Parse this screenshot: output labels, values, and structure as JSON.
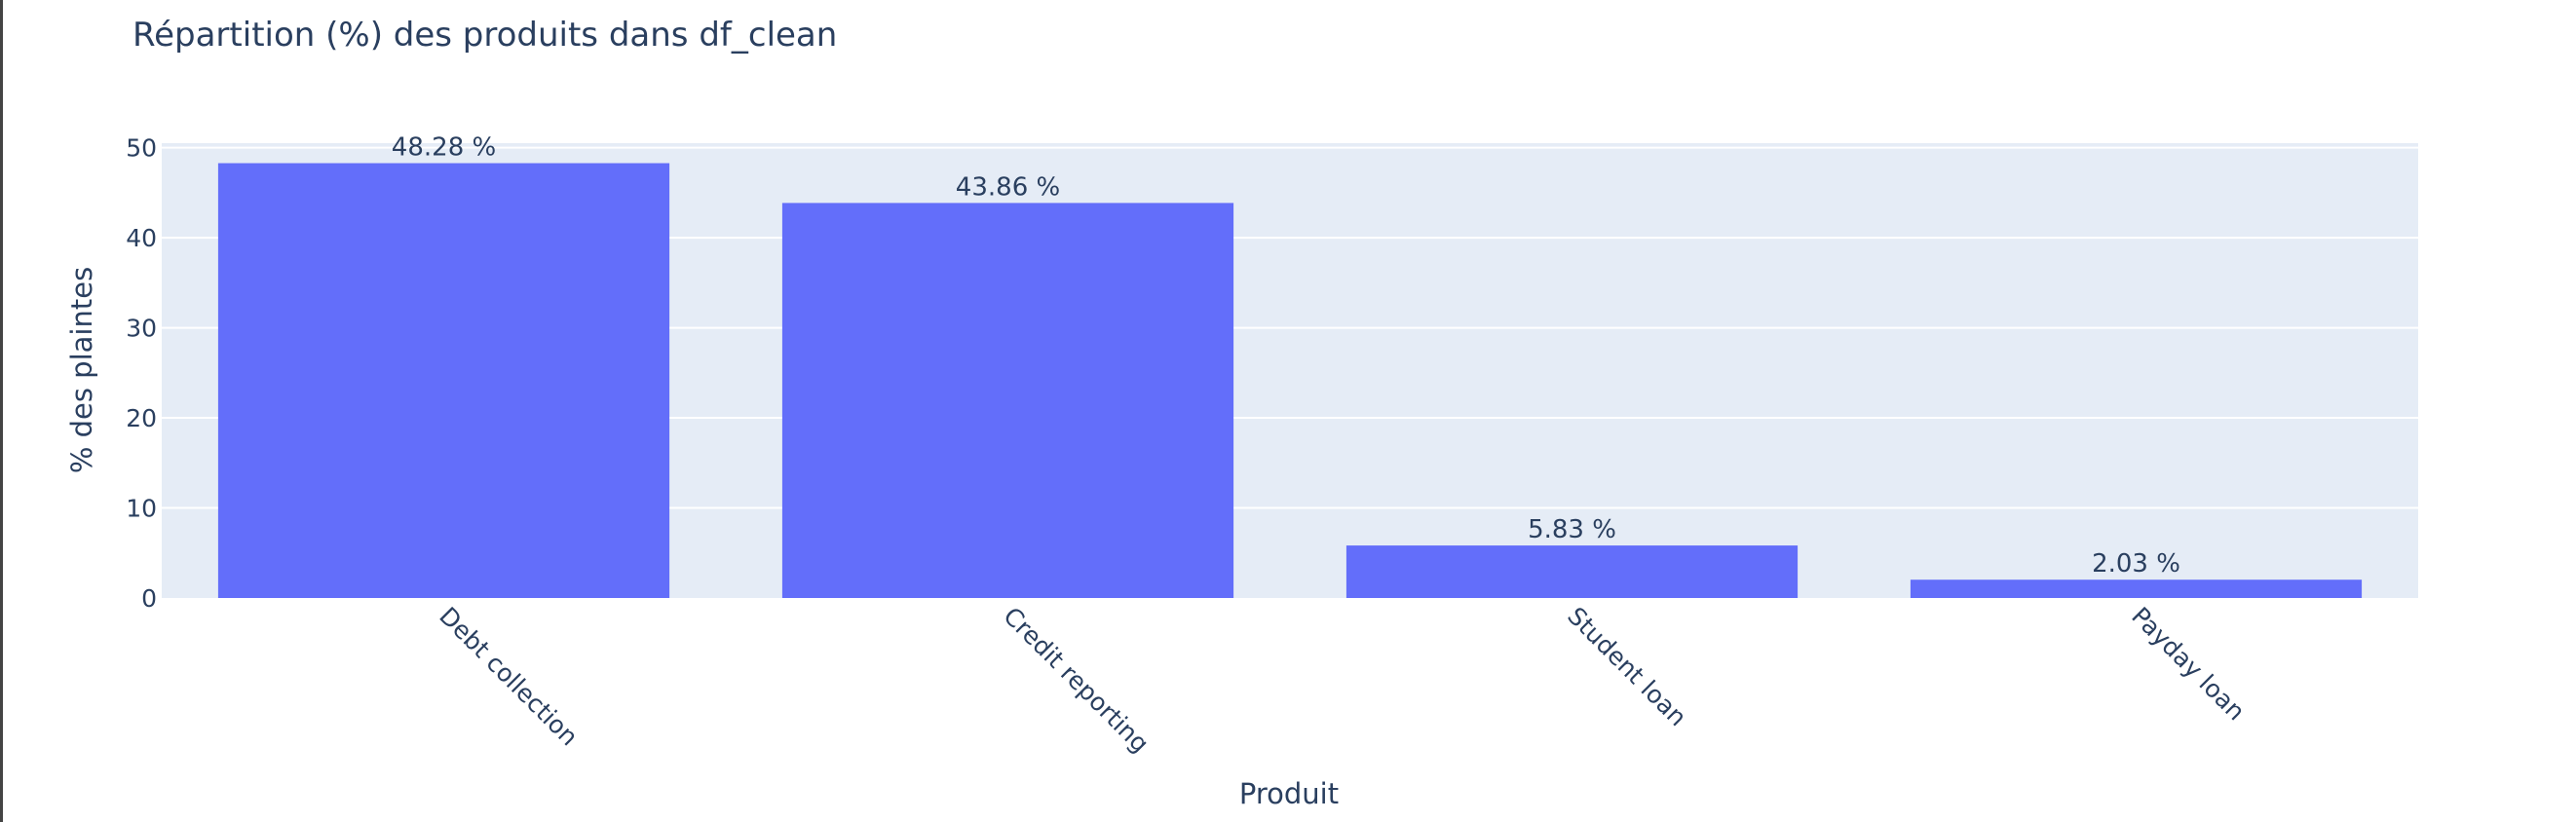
{
  "chart_data": {
    "type": "bar",
    "title": "Répartition (%) des produits dans df_clean",
    "xlabel": "Produit",
    "ylabel": "% des plaintes",
    "categories": [
      "Debt collection",
      "Credit reporting",
      "Student loan",
      "Payday loan"
    ],
    "values": [
      48.28,
      43.86,
      5.83,
      2.03
    ],
    "data_labels": [
      "48.28 %",
      "43.86 %",
      "5.83 %",
      "2.03 %"
    ],
    "ylim": [
      0,
      50.5
    ],
    "yticks": [
      0,
      10,
      20,
      30,
      40,
      50
    ],
    "grid": true,
    "legend": "none"
  },
  "colors": {
    "bar": "#636efa",
    "plot_background": "#e5ecf6",
    "gridline": "#ffffff",
    "text": "#2a3f5f"
  }
}
